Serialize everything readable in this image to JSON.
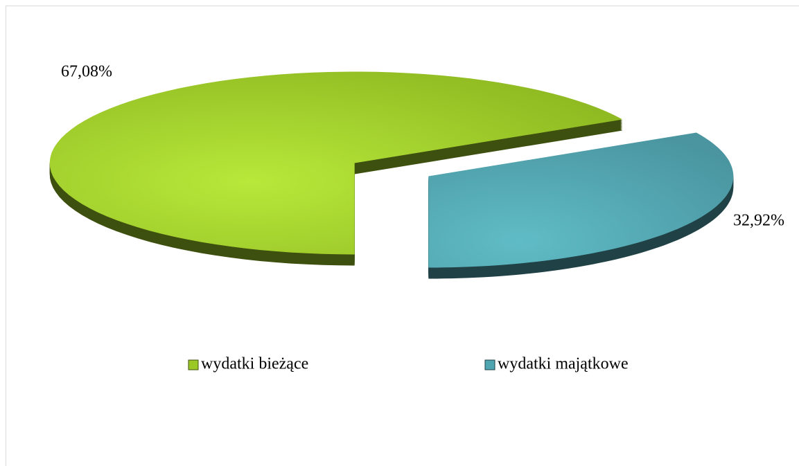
{
  "chart_data": {
    "type": "pie",
    "categories": [
      "wydatki bieżące",
      "wydatki majątkowe"
    ],
    "values": [
      67.08,
      32.92
    ],
    "value_labels": [
      "67,08%",
      "32,92%"
    ],
    "colors": [
      "#9cc825",
      "#4fa5b0"
    ],
    "legend": "bottom"
  }
}
